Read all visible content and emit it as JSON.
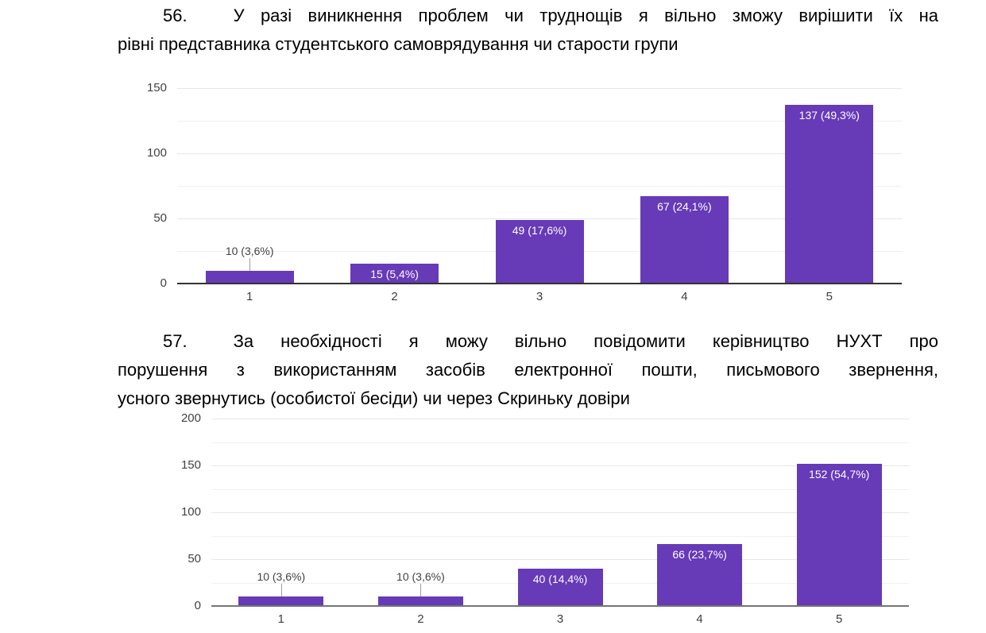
{
  "page": {
    "background": "#ffffff",
    "text_color": "#000000"
  },
  "questions": [
    {
      "number": "56.",
      "text": "У разі виникнення проблем чи труднощів я вільно зможу вирішити їх на рівні представника студентського самоврядування чи старости групи",
      "lines": [
        "У разі виникнення проблем чи труднощів я вільно зможу вирішити їх на",
        "рівні представника студентського самоврядування чи старости групи"
      ]
    },
    {
      "number": "57.",
      "text": "За необхідності я можу вільно повідомити керівництво НУХТ про порушення з використанням засобів електронної пошти, письмового звернення, усного звернутись (особистої бесіди) чи через Скриньку довіри",
      "lines": [
        "За необхідності я можу вільно повідомити керівництво НУХТ про",
        "порушення з використанням засобів електронної пошти, письмового звернення,",
        "усного звернутись (особистої бесіди) чи через Скриньку довіри"
      ]
    }
  ],
  "chart_data": [
    {
      "type": "bar",
      "title": "У разі виникнення проблем чи труднощів я вільно зможу вирішити їх на рівні представника студентського самоврядування чи старости групи",
      "categories": [
        "1",
        "2",
        "3",
        "4",
        "5"
      ],
      "values": [
        10,
        15,
        49,
        67,
        137
      ],
      "data_labels": [
        "10 (3,6%)",
        "15 (5,4%)",
        "49 (17,6%)",
        "67 (24,1%)",
        "137 (49,3%)"
      ],
      "label_placement": [
        "outside",
        "inside",
        "inside",
        "inside",
        "inside"
      ],
      "xlabel": "",
      "ylabel": "",
      "ylim": [
        0,
        150
      ],
      "y_ticks": [
        0,
        50,
        100,
        150
      ],
      "grid": "on",
      "legend": "none",
      "bar_color": "#673ab7",
      "axis_line_color": "#333333",
      "gridline_color": "#e6e6e6",
      "minor_gridline_color": "#f0f0f0",
      "tick_label_color": "#424242",
      "outside_label_color": "#424242",
      "inside_label_color": "#ffffff",
      "leader_line_color": "#9e9e9e"
    },
    {
      "type": "bar",
      "title": "За необхідності я можу вільно повідомити керівництво НУХТ про порушення з використанням засобів електронної пошти, письмового звернення, усного звернутись (особистої бесіди) чи через Скриньку довіри",
      "categories": [
        "1",
        "2",
        "3",
        "4",
        "5"
      ],
      "values": [
        10,
        10,
        40,
        66,
        152
      ],
      "data_labels": [
        "10 (3,6%)",
        "10 (3,6%)",
        "40 (14,4%)",
        "66 (23,7%)",
        "152 (54,7%)"
      ],
      "label_placement": [
        "outside",
        "outside",
        "inside",
        "inside",
        "inside"
      ],
      "xlabel": "",
      "ylabel": "",
      "ylim": [
        0,
        200
      ],
      "y_ticks": [
        0,
        50,
        100,
        150,
        200
      ],
      "grid": "on",
      "legend": "none",
      "bar_color": "#673ab7",
      "axis_line_color": "#757575",
      "gridline_color": "#e6e6e6",
      "minor_gridline_color": "#f0f0f0",
      "tick_label_color": "#424242",
      "outside_label_color": "#424242",
      "inside_label_color": "#ffffff",
      "leader_line_color": "#9e9e9e"
    }
  ]
}
